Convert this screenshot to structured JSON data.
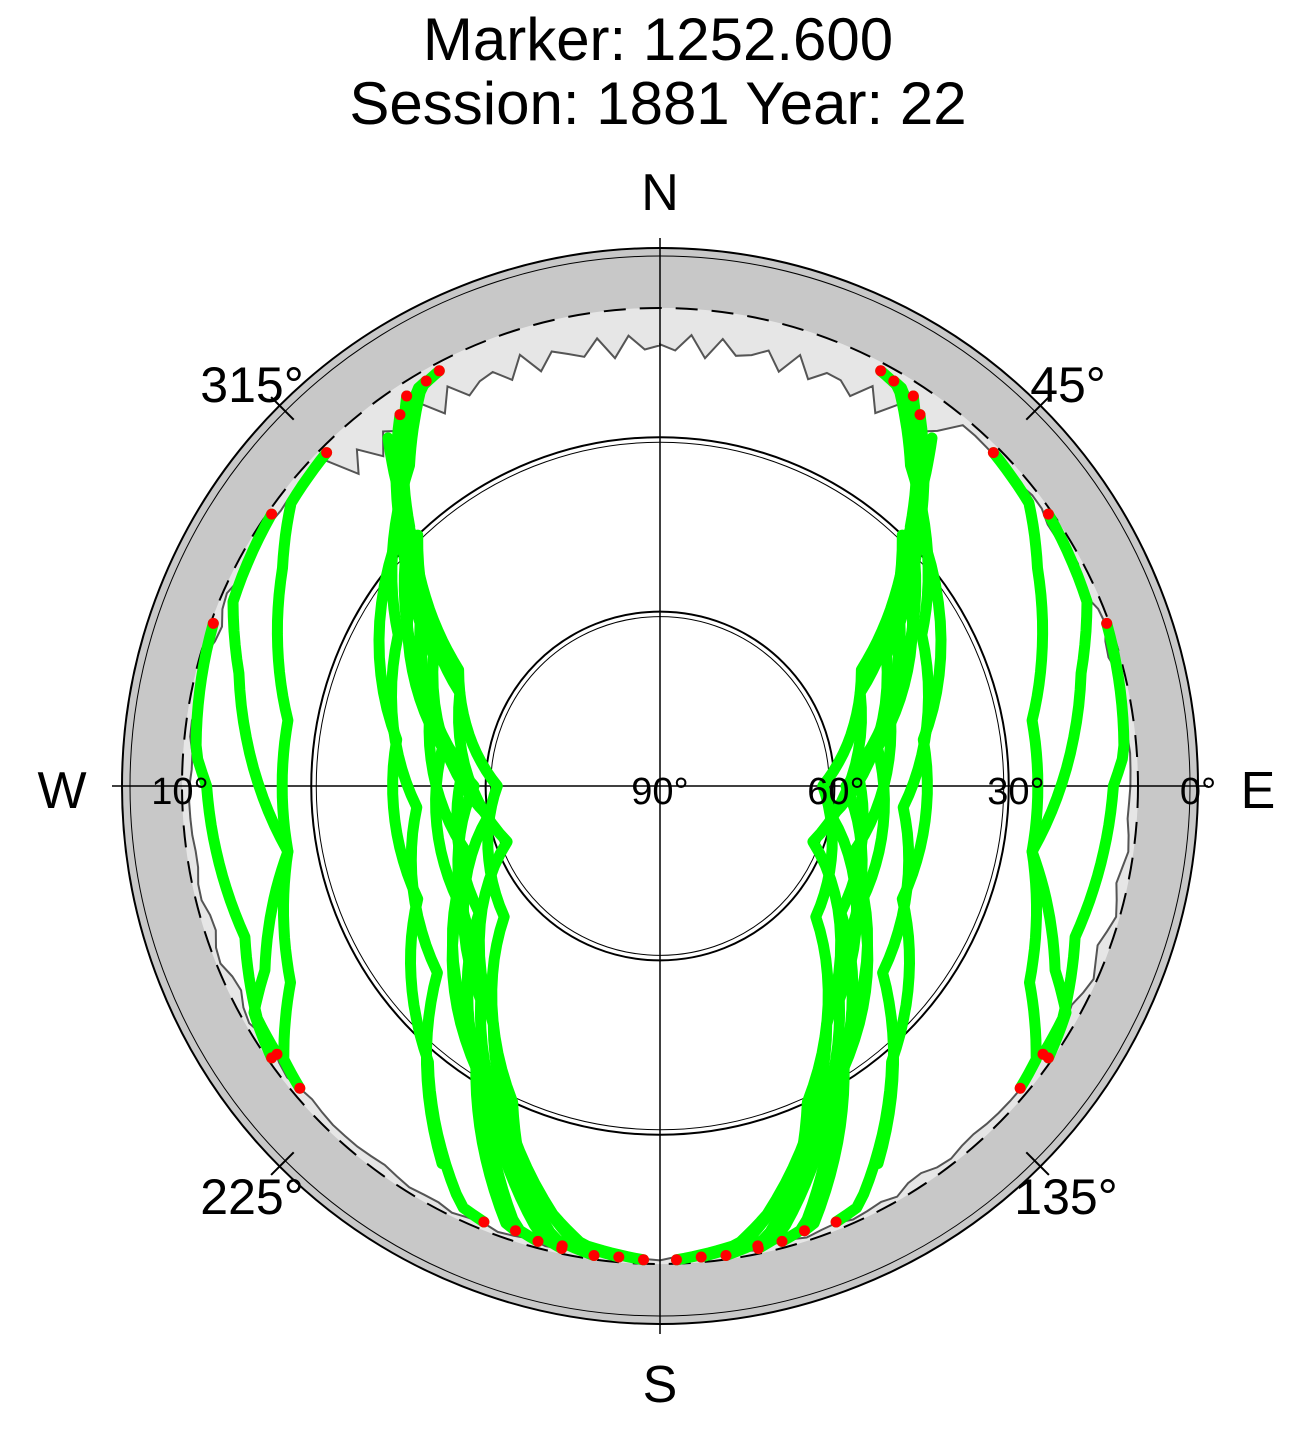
{
  "title": "Marker: 1252.600",
  "subtitle": "Session: 1881 Year: 22",
  "compass": {
    "north": "N",
    "south": "S",
    "east": "E",
    "west": "W"
  },
  "azimuth_labels": [
    "45°",
    "135°",
    "225°",
    "315°"
  ],
  "elevation_labels": [
    "0°",
    "10°",
    "30°",
    "60°",
    "90°"
  ],
  "colors": {
    "track": "#00ff00",
    "track_end": "#ff0000",
    "below_horizon": "#c8c8c8",
    "obstruction": "#e6e6e6",
    "axis": "#000000"
  },
  "chart_data": {
    "type": "scatter",
    "projection": "polar-skyplot",
    "title": "Marker: 1252.600",
    "subtitle": "Session: 1881 Year: 22",
    "axes": {
      "azimuth_range_deg": [
        0,
        360
      ],
      "elevation_range_deg": [
        0,
        90
      ],
      "azimuth_ticks_deg": [
        45,
        135,
        225,
        315
      ],
      "elevation_ticks_deg": [
        0,
        10,
        30,
        60,
        90
      ]
    },
    "grid": true,
    "series": [
      {
        "tracks": [
          [
            [
              38,
              14
            ],
            [
              45,
              30
            ],
            [
              60,
              50
            ],
            [
              90,
              62
            ],
            [
              130,
              55
            ],
            [
              155,
              30
            ],
            [
              168,
              4
            ]
          ],
          [
            [
              35,
              12
            ],
            [
              50,
              34
            ],
            [
              80,
              52
            ],
            [
              120,
              50
            ],
            [
              150,
              30
            ],
            [
              165,
              5
            ]
          ],
          [
            [
              40,
              20
            ],
            [
              55,
              40
            ],
            [
              90,
              58
            ],
            [
              130,
              48
            ],
            [
              158,
              22
            ],
            [
              172,
              3
            ]
          ],
          [
            [
              33,
              10
            ],
            [
              44,
              28
            ],
            [
              70,
              48
            ],
            [
              110,
              55
            ],
            [
              145,
              35
            ],
            [
              162,
              8
            ]
          ],
          [
            [
              42,
              24
            ],
            [
              60,
              45
            ],
            [
              100,
              60
            ],
            [
              140,
              42
            ],
            [
              162,
              18
            ],
            [
              175,
              4
            ]
          ],
          [
            [
              36,
              16
            ],
            [
              52,
              38
            ],
            [
              85,
              56
            ],
            [
              125,
              52
            ],
            [
              152,
              28
            ],
            [
              168,
              6
            ]
          ],
          [
            [
              44,
              30
            ],
            [
              65,
              52
            ],
            [
              110,
              62
            ],
            [
              145,
              40
            ],
            [
              166,
              14
            ],
            [
              178,
              3
            ]
          ],
          [
            [
              30,
              8
            ],
            [
              45,
              27
            ],
            [
              80,
              44
            ],
            [
              115,
              44
            ],
            [
              140,
              28
            ],
            [
              158,
              6
            ]
          ],
          [
            [
              28,
              6
            ],
            [
              38,
              20
            ],
            [
              60,
              38
            ],
            [
              95,
              48
            ],
            [
              130,
              40
            ],
            [
              150,
              15
            ]
          ],
          [
            [
              45,
              5
            ],
            [
              60,
              15
            ],
            [
              80,
              25
            ],
            [
              100,
              25
            ],
            [
              115,
              15
            ],
            [
              125,
              3
            ]
          ],
          [
            [
              55,
              3
            ],
            [
              75,
              15
            ],
            [
              100,
              25
            ],
            [
              118,
              18
            ],
            [
              130,
              6
            ]
          ],
          [
            [
              70,
              2
            ],
            [
              90,
              12
            ],
            [
              110,
              14
            ],
            [
              125,
              8
            ]
          ],
          [
            [
              322,
              14
            ],
            [
              315,
              30
            ],
            [
              300,
              50
            ],
            [
              270,
              62
            ],
            [
              230,
              55
            ],
            [
              205,
              30
            ],
            [
              192,
              4
            ]
          ],
          [
            [
              325,
              12
            ],
            [
              310,
              34
            ],
            [
              280,
              52
            ],
            [
              240,
              50
            ],
            [
              210,
              30
            ],
            [
              195,
              5
            ]
          ],
          [
            [
              320,
              20
            ],
            [
              305,
              40
            ],
            [
              270,
              58
            ],
            [
              230,
              48
            ],
            [
              202,
              22
            ],
            [
              188,
              3
            ]
          ],
          [
            [
              327,
              10
            ],
            [
              316,
              28
            ],
            [
              290,
              48
            ],
            [
              250,
              55
            ],
            [
              215,
              35
            ],
            [
              198,
              8
            ]
          ],
          [
            [
              318,
              24
            ],
            [
              300,
              45
            ],
            [
              260,
              60
            ],
            [
              220,
              42
            ],
            [
              198,
              18
            ],
            [
              185,
              4
            ]
          ],
          [
            [
              324,
              16
            ],
            [
              308,
              38
            ],
            [
              275,
              56
            ],
            [
              235,
              52
            ],
            [
              208,
              28
            ],
            [
              192,
              6
            ]
          ],
          [
            [
              316,
              30
            ],
            [
              295,
              52
            ],
            [
              250,
              62
            ],
            [
              215,
              40
            ],
            [
              194,
              14
            ],
            [
              182,
              3
            ]
          ],
          [
            [
              330,
              8
            ],
            [
              315,
              27
            ],
            [
              280,
              44
            ],
            [
              245,
              44
            ],
            [
              220,
              28
            ],
            [
              202,
              6
            ]
          ],
          [
            [
              332,
              6
            ],
            [
              322,
              20
            ],
            [
              300,
              38
            ],
            [
              265,
              48
            ],
            [
              230,
              40
            ],
            [
              210,
              15
            ]
          ],
          [
            [
              315,
              5
            ],
            [
              300,
              15
            ],
            [
              280,
              25
            ],
            [
              260,
              25
            ],
            [
              245,
              15
            ],
            [
              235,
              3
            ]
          ],
          [
            [
              305,
              3
            ],
            [
              285,
              15
            ],
            [
              260,
              25
            ],
            [
              242,
              18
            ],
            [
              230,
              6
            ]
          ],
          [
            [
              290,
              2
            ],
            [
              270,
              12
            ],
            [
              250,
              14
            ],
            [
              235,
              8
            ]
          ]
        ]
      }
    ]
  }
}
